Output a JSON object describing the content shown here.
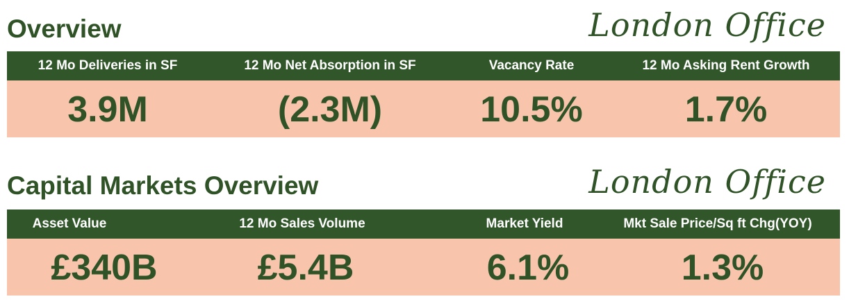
{
  "overview": {
    "title": "Overview",
    "brand": "London Office",
    "headers": [
      "12 Mo Deliveries in SF",
      "12 Mo Net Absorption in SF",
      "Vacancy Rate",
      "12 Mo Asking Rent Growth"
    ],
    "values": [
      "3.9M",
      "(2.3M)",
      "10.5%",
      "1.7%"
    ]
  },
  "capital_markets": {
    "title": "Capital Markets Overview",
    "brand": "London Office",
    "headers": [
      "Asset Value",
      "12 Mo Sales Volume",
      "Market Yield",
      "Mkt Sale Price/Sq ft Chg(YOY)"
    ],
    "values": [
      "£340B",
      "£5.4B",
      "6.1%",
      "1.3%"
    ]
  },
  "colors": {
    "dark_green": "#31562a",
    "text_green": "#2f5327",
    "salmon": "#f8c4ab"
  }
}
